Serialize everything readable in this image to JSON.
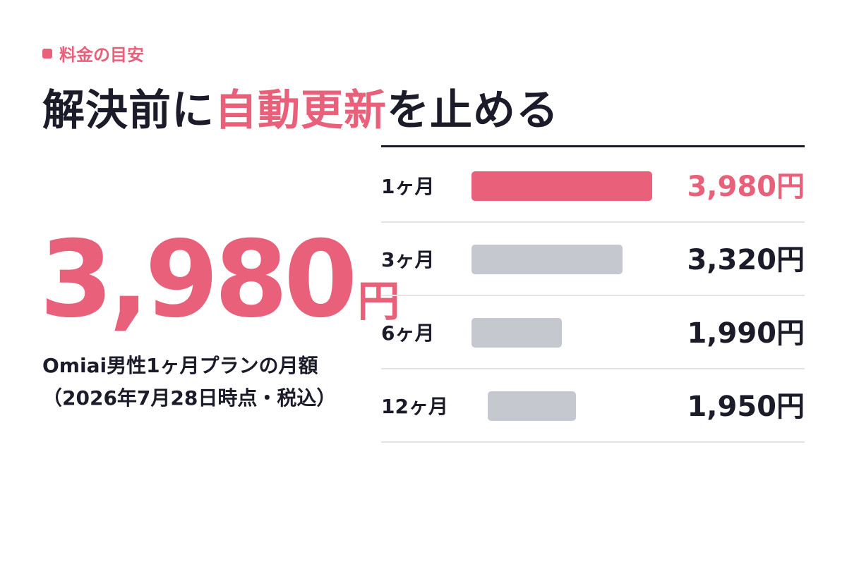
{
  "colors": {
    "accent": "#e8607a",
    "dark": "#1b1b2a",
    "bar_muted": "#c6c8cf",
    "divider": "#e3e4e8"
  },
  "header": {
    "eyebrow": "料金の目安",
    "headline_before": "解決前に",
    "headline_highlight": "自動更新",
    "headline_after": "を止める"
  },
  "highlight": {
    "amount": "3,980",
    "unit": "円",
    "caption": "Omiai男性1ヶ月プランの月額（2026年7月28日時点・税込）"
  },
  "chart_data": {
    "type": "bar",
    "orientation": "horizontal",
    "categories": [
      "1ヶ月",
      "3ヶ月",
      "6ヶ月",
      "12ヶ月"
    ],
    "values": [
      3980,
      3320,
      1990,
      1950
    ],
    "value_labels": [
      "3,980円",
      "3,320円",
      "1,990円",
      "1,950円"
    ],
    "highlighted_index": 0,
    "grid": false,
    "legend": "none"
  }
}
